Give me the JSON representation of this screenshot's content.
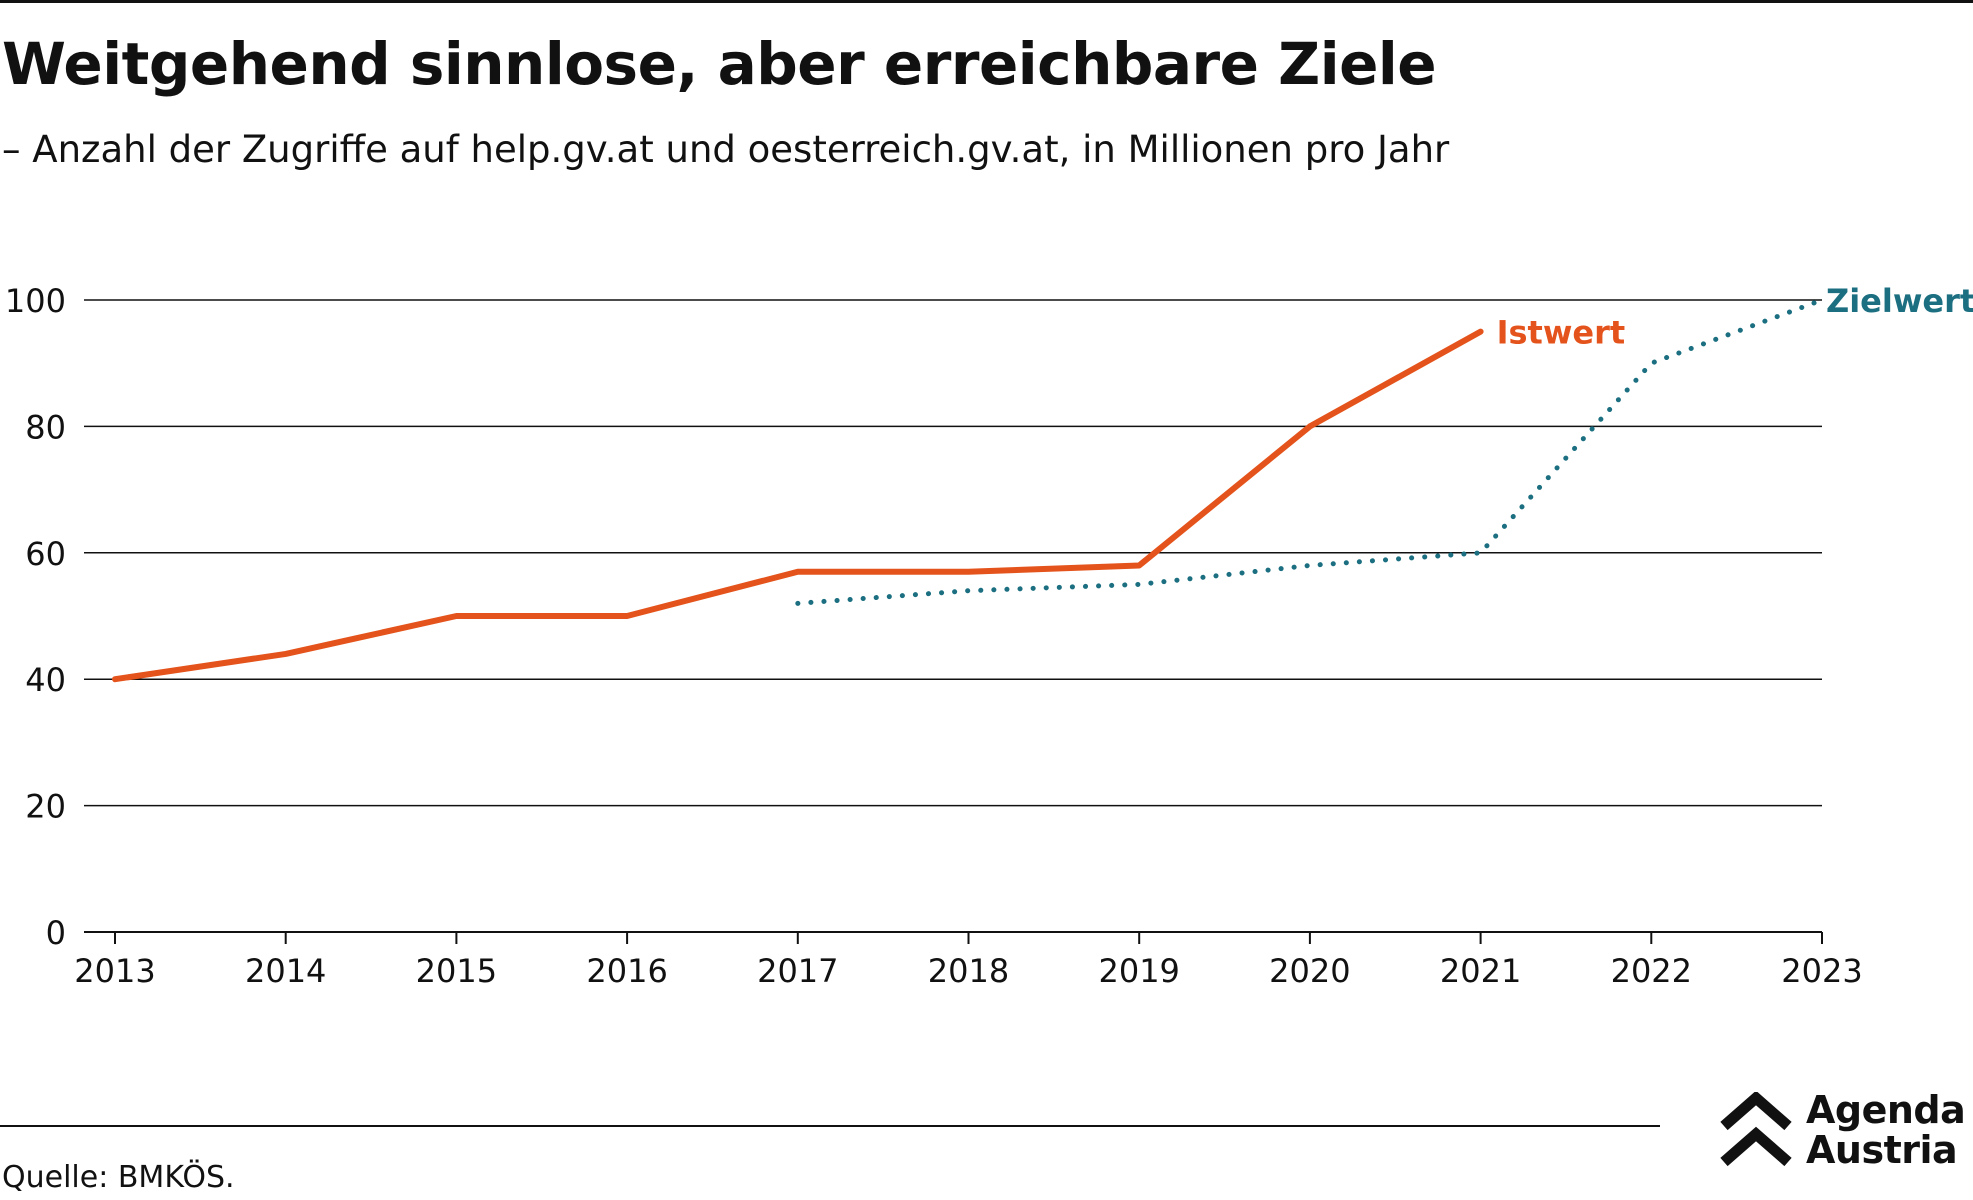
{
  "title": "Weitgehend sinnlose, aber erreichbare Ziele",
  "subtitle": "– Anzahl der Zugriffe auf help.gv.at und oesterreich.gv.at, in Millionen pro Jahr",
  "source": "Quelle: BMKÖS.",
  "logo": {
    "line1": "Agenda",
    "line2": "Austria",
    "icon": "double-chevron-up-icon"
  },
  "colors": {
    "istwert": "#E4531B",
    "zielwert": "#1B6F80",
    "grid": "#111111",
    "text": "#111111"
  },
  "chart_data": {
    "type": "line",
    "x": [
      "2013",
      "2014",
      "2015",
      "2016",
      "2017",
      "2018",
      "2019",
      "2020",
      "2021",
      "2022",
      "2023"
    ],
    "ylim": [
      0,
      100
    ],
    "yticks": [
      0,
      20,
      40,
      60,
      80,
      100
    ],
    "grid": true,
    "xlabel": "",
    "ylabel": "",
    "series": [
      {
        "name": "Istwert",
        "style": "solid",
        "points": [
          [
            "2013",
            40
          ],
          [
            "2014",
            44
          ],
          [
            "2015",
            50
          ],
          [
            "2016",
            50
          ],
          [
            "2017",
            57
          ],
          [
            "2018",
            57
          ],
          [
            "2019",
            58
          ],
          [
            "2020",
            80
          ],
          [
            "2021",
            95
          ]
        ]
      },
      {
        "name": "Zielwert",
        "style": "dotted",
        "points": [
          [
            "2017",
            52
          ],
          [
            "2018",
            54
          ],
          [
            "2019",
            55
          ],
          [
            "2020",
            58
          ],
          [
            "2021",
            60
          ],
          [
            "2022",
            90
          ],
          [
            "2023",
            100
          ]
        ]
      }
    ]
  }
}
